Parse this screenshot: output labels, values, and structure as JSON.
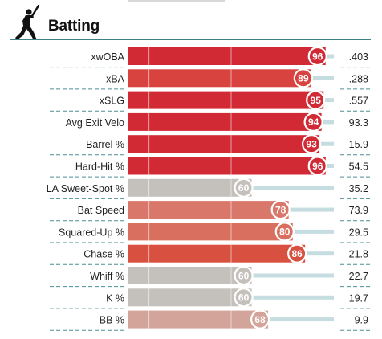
{
  "section_title": "Batting",
  "icon": "batter-silhouette-icon",
  "colors": {
    "rule": "#3f7f86",
    "track": "#c5dde0",
    "divider": "#4a8f96"
  },
  "chart_data": {
    "type": "bar",
    "orientation": "horizontal",
    "title": "",
    "xlim": [
      0,
      100
    ],
    "rows": [
      {
        "label": "xwOBA",
        "percentile": 96,
        "value": ".403",
        "color": "#d12a35"
      },
      {
        "label": "xBA",
        "percentile": 89,
        "value": ".288",
        "color": "#d8433f"
      },
      {
        "label": "xSLG",
        "percentile": 95,
        "value": ".557",
        "color": "#d12a35"
      },
      {
        "label": "Avg Exit Velo",
        "percentile": 94,
        "value": "93.3",
        "color": "#d12a35"
      },
      {
        "label": "Barrel %",
        "percentile": 93,
        "value": "15.9",
        "color": "#d12a35"
      },
      {
        "label": "Hard-Hit %",
        "percentile": 96,
        "value": "54.5",
        "color": "#d12a35"
      },
      {
        "label": "LA Sweet-Spot %",
        "percentile": 60,
        "value": "35.2",
        "color": "#c4c1bc"
      },
      {
        "label": "Bat Speed",
        "percentile": 78,
        "value": "73.9",
        "color": "#d9786a"
      },
      {
        "label": "Squared-Up %",
        "percentile": 80,
        "value": "29.5",
        "color": "#d9705f"
      },
      {
        "label": "Chase %",
        "percentile": 86,
        "value": "21.8",
        "color": "#d8503f"
      },
      {
        "label": "Whiff %",
        "percentile": 60,
        "value": "22.7",
        "color": "#c4c1bc"
      },
      {
        "label": "K %",
        "percentile": 60,
        "value": "19.7",
        "color": "#c4c1bc"
      },
      {
        "label": "BB %",
        "percentile": 68,
        "value": "9.9",
        "color": "#d3a49a"
      }
    ]
  }
}
